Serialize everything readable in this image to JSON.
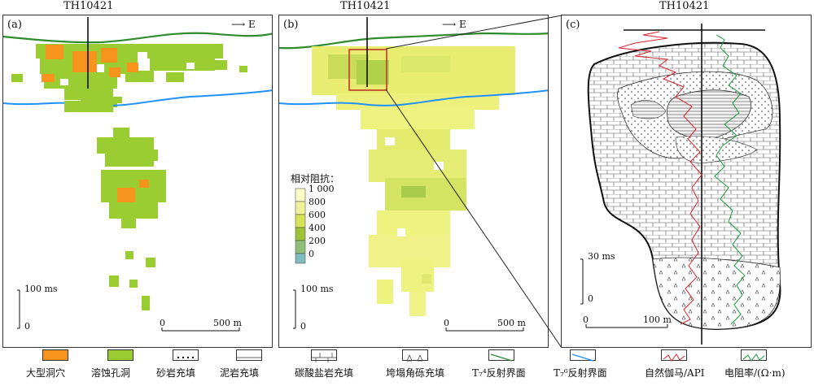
{
  "panels": {
    "a": {
      "label": "(a)",
      "title": "TH10421",
      "east": "E",
      "scale_v_label": "100 ms",
      "scale_v_zero": "0",
      "scale_h_zero": "0",
      "scale_h_label": "500 m"
    },
    "b": {
      "label": "(b)",
      "title": "TH10421",
      "east": "E",
      "scale_v_label": "100 ms",
      "scale_v_zero": "0",
      "scale_h_zero": "0",
      "scale_h_label": "500 m",
      "colorbar_title": "相对阻抗：",
      "colorbar_ticks": [
        "1 000",
        "800",
        "600",
        "400",
        "200",
        "0"
      ]
    },
    "c": {
      "label": "(c)",
      "title": "TH10421",
      "scale_v_label": "30 ms",
      "scale_v_zero": "0",
      "scale_h_zero": "0",
      "scale_h_label": "100 m"
    }
  },
  "legend": [
    {
      "label": "大型洞穴",
      "icon": "orange-fill"
    },
    {
      "label": "溶蚀孔洞",
      "icon": "green-fill"
    },
    {
      "label": "砂岩充填",
      "icon": "dots"
    },
    {
      "label": "泥岩充填",
      "icon": "hlines"
    },
    {
      "label": "碳酸盐岩充填",
      "icon": "brick"
    },
    {
      "label": "垮塌角砾充填",
      "icon": "triangles"
    },
    {
      "label": "T₇⁴反射界面",
      "icon": "green-line"
    },
    {
      "label": "T₇⁶反射界面",
      "icon": "blue-line"
    },
    {
      "label": "自然伽马/API",
      "icon": "red-curve"
    },
    {
      "label": "电阻率/(Ω·m)",
      "icon": "green-curve"
    }
  ],
  "colors": {
    "cave": "#f7941d",
    "vug": "#9acd32",
    "t74": "#2e8b2e",
    "t76": "#1e90ff",
    "gamma": "#d9232d",
    "resistivity": "#1a9b3a"
  }
}
